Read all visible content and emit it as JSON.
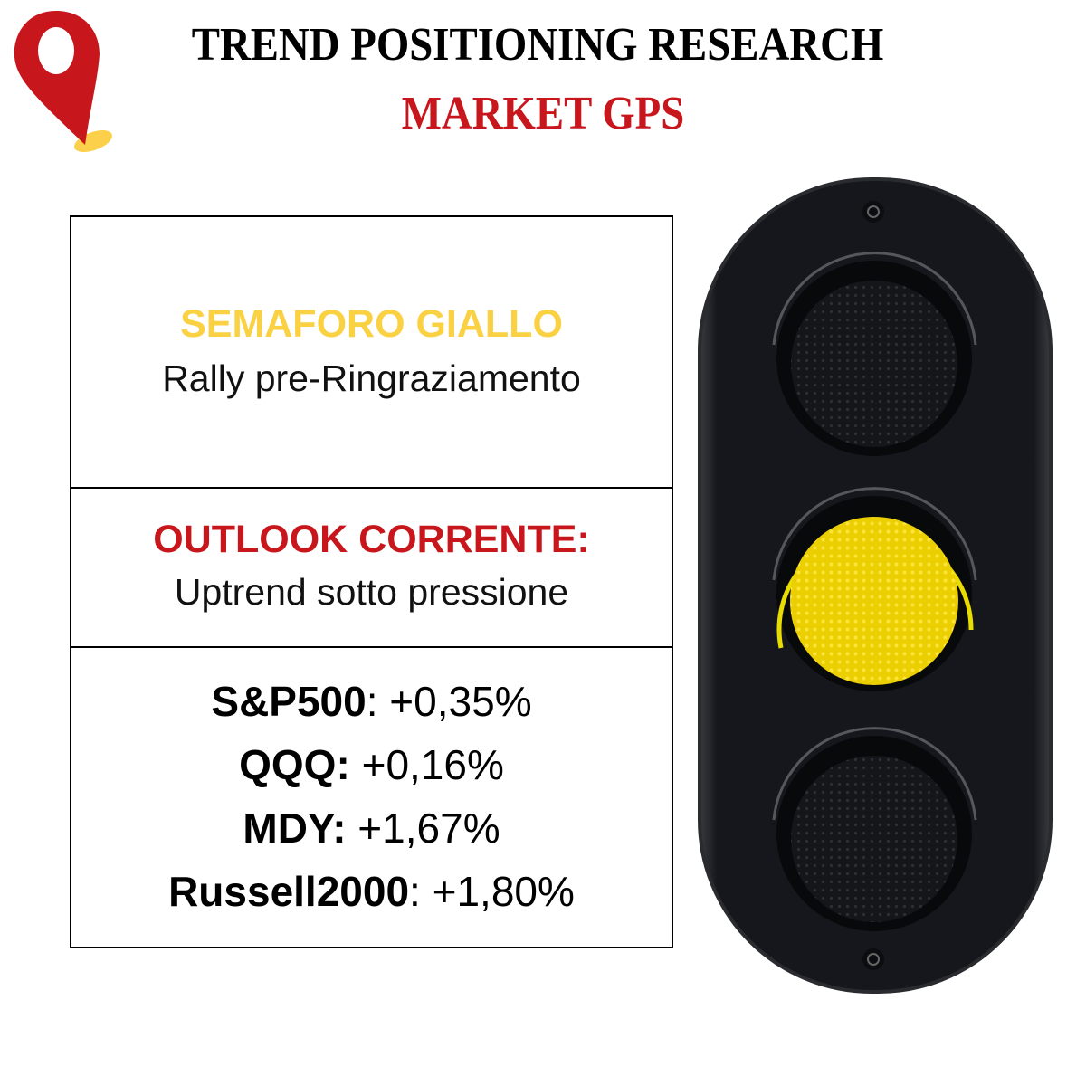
{
  "header": {
    "title": "TREND POSITIONING RESEARCH",
    "subtitle": "MARKET GPS",
    "logo_icon": "map-pin-icon"
  },
  "signal": {
    "label": "SEMAFORO GIALLO",
    "description": "Rally pre-Ringraziamento",
    "color": "#f9d142"
  },
  "outlook": {
    "label": "OUTLOOK CORRENTE:",
    "value": "Uptrend sotto pressione",
    "color": "#c8161d"
  },
  "indices": [
    {
      "name": "S&P500",
      "sep": ": ",
      "value": "+0,35%"
    },
    {
      "name": "QQQ:",
      "sep": " ",
      "value": "+0,16%"
    },
    {
      "name": "MDY:",
      "sep": " ",
      "value": "+1,67%"
    },
    {
      "name": "Russell2000",
      "sep": ": ",
      "value": "+1,80%"
    }
  ],
  "traffic_light": {
    "active": "yellow",
    "active_color": "#f2d300"
  }
}
